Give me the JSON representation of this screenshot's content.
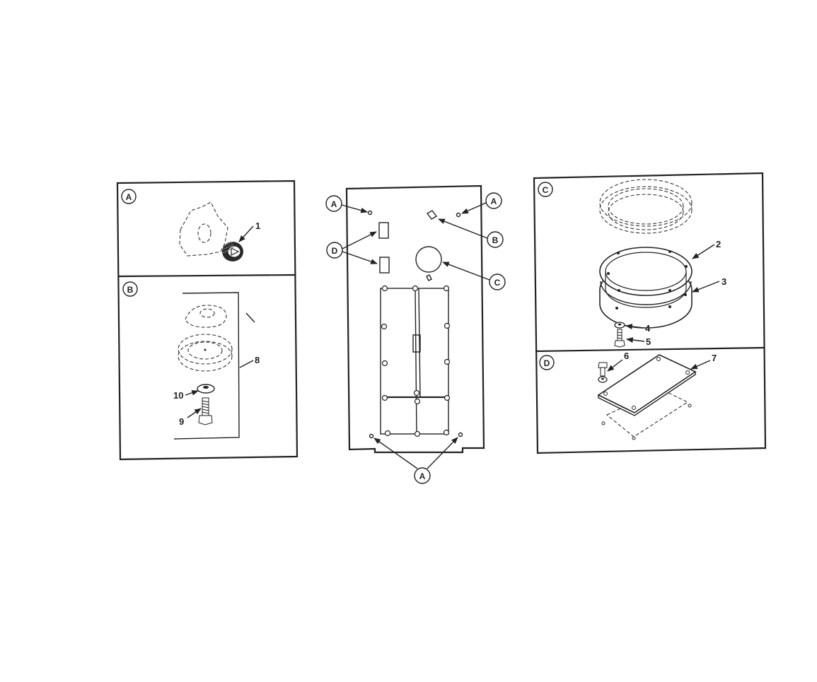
{
  "panels": {
    "detail_a": {
      "callout": "A",
      "item_numbers": [
        "1"
      ]
    },
    "detail_b": {
      "callout": "B",
      "item_numbers": [
        "8",
        "10",
        "9"
      ]
    },
    "main": {
      "callouts": {
        "a_top_left": "A",
        "a_top_right": "A",
        "b": "B",
        "c": "C",
        "d": "D",
        "a_bottom": "A"
      }
    },
    "detail_c": {
      "callout": "C",
      "item_numbers": [
        "2",
        "3",
        "4",
        "5"
      ]
    },
    "detail_d": {
      "callout": "D",
      "item_numbers": [
        "6",
        "7"
      ]
    }
  }
}
